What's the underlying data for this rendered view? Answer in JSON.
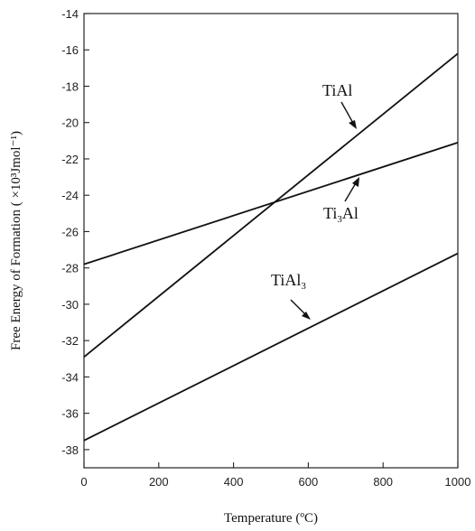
{
  "chart_data": {
    "type": "line",
    "xlabel": "Temperature (ºC)",
    "ylabel": "Free Energy of Formation ( ×10³Jmol⁻¹)",
    "xlim": [
      0,
      1000
    ],
    "ylim": [
      -39,
      -14
    ],
    "x_ticks": [
      "0",
      "200",
      "400",
      "600",
      "800",
      "1000"
    ],
    "y_ticks": [
      "-14",
      "-16",
      "-18",
      "-20",
      "-22",
      "-24",
      "-26",
      "-28",
      "-30",
      "-32",
      "-34",
      "-36",
      "-38"
    ],
    "grid": false,
    "series": [
      {
        "name": "TiAl",
        "x": [
          0,
          1000
        ],
        "y": [
          -32.9,
          -16.2
        ]
      },
      {
        "name": "Ti3Al",
        "x": [
          0,
          1000
        ],
        "y": [
          -27.8,
          -21.1
        ]
      },
      {
        "name": "TiAl3",
        "x": [
          0,
          1000
        ],
        "y": [
          -37.5,
          -27.2
        ]
      }
    ],
    "annotations": [
      {
        "text": "TiAl",
        "series": "TiAl"
      },
      {
        "text": "Ti3Al",
        "series": "Ti3Al"
      },
      {
        "text": "TiAl3",
        "series": "TiAl3"
      }
    ],
    "colors": {
      "line": "#111111",
      "axis": "#222222"
    }
  }
}
